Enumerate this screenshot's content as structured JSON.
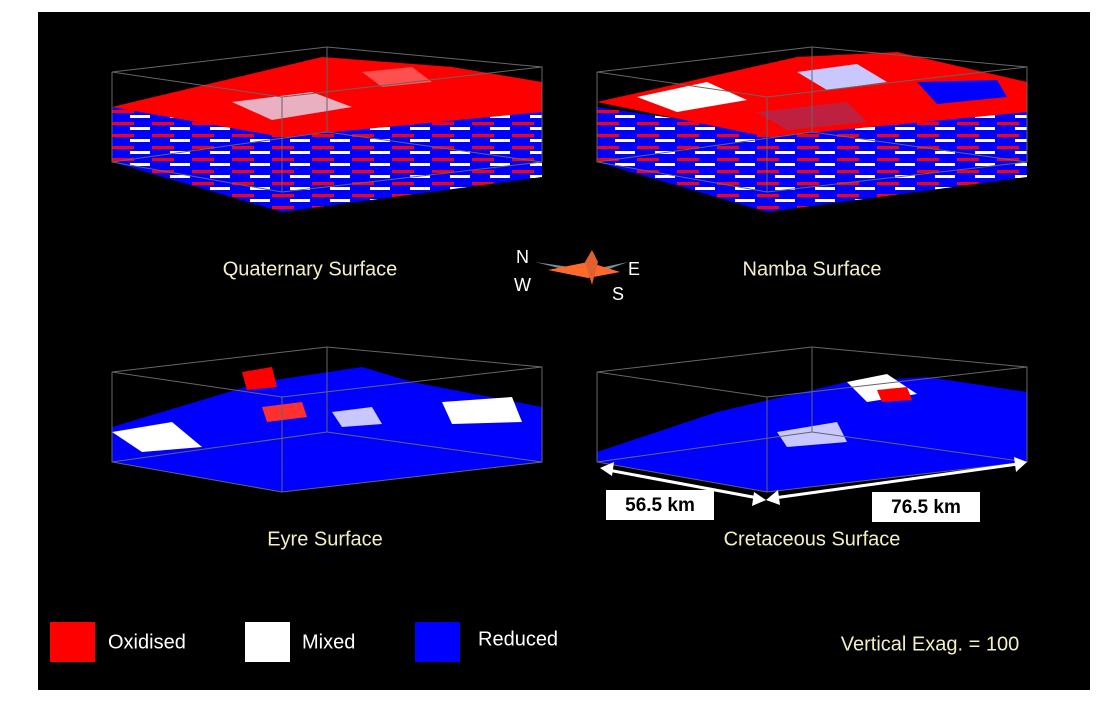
{
  "panels": [
    {
      "label": "Quaternary Surface"
    },
    {
      "label": "Namba Surface"
    },
    {
      "label": "Eyre Surface"
    },
    {
      "label": "Cretaceous Surface"
    }
  ],
  "compass": {
    "n": "N",
    "e": "E",
    "s": "S",
    "w": "W"
  },
  "dimensions": [
    "56.5 km",
    "76.5 km"
  ],
  "legend": [
    {
      "label": "Oxidised",
      "color": "#ff0000"
    },
    {
      "label": "Mixed",
      "color": "#ffffff"
    },
    {
      "label": "Reduced",
      "color": "#0000ff"
    }
  ],
  "note": "Vertical Exag. = 100"
}
